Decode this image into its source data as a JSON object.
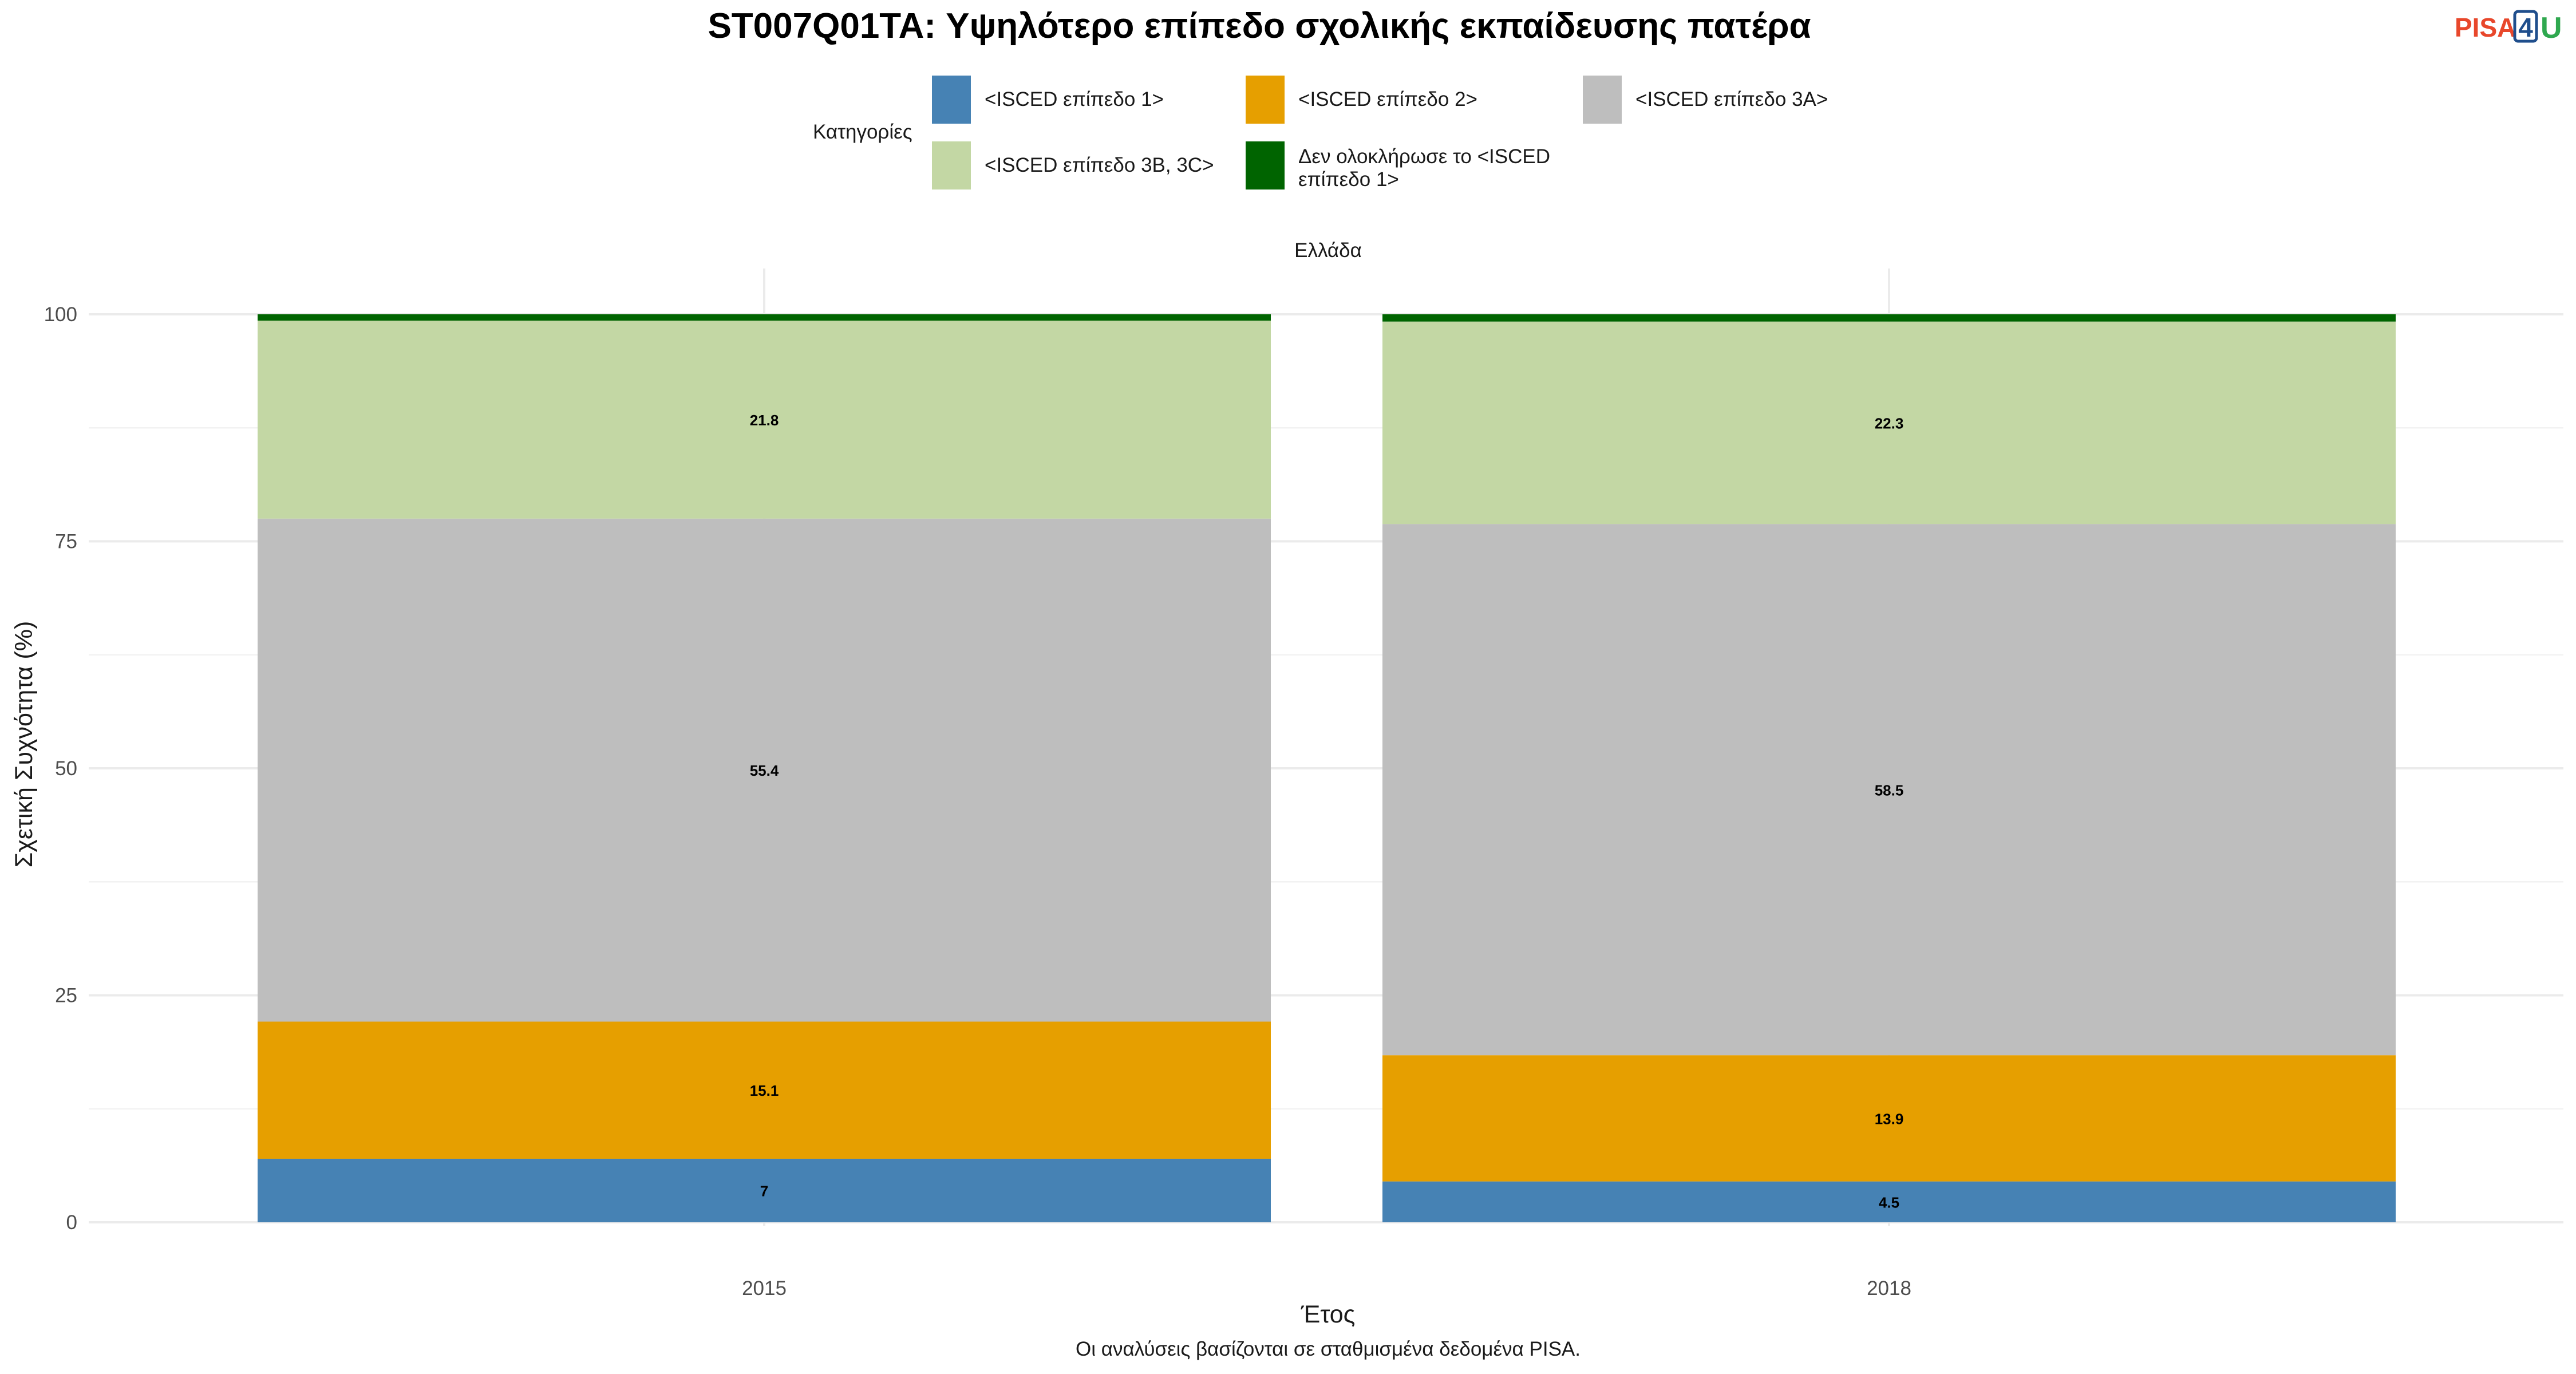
{
  "logo": {
    "text_a": "PISA",
    "text_b": "4",
    "text_c": "U",
    "color_a": "#e8472b",
    "color_b": "#1f4e8c",
    "color_c": "#2fa84f"
  },
  "chart_data": {
    "type": "bar",
    "stacked": true,
    "title": "ST007Q01TA: Υψηλότερο επίπεδο σχολικής εκπαίδευσης πατέρα",
    "facet_label": "Ελλάδα",
    "xlabel": "Έτος",
    "ylabel": "Σχετική Συχνότητα (%)",
    "caption": "Οι αναλύσεις βασίζονται σε σταθμισμένα δεδομένα PISA.",
    "legend_title": "Κατηγορίες",
    "legend_position": "top",
    "grid": true,
    "ylim": [
      0,
      100
    ],
    "yticks": [
      0,
      25,
      50,
      75,
      100
    ],
    "categories": [
      "2015",
      "2018"
    ],
    "series": [
      {
        "name": "<ISCED επίπεδο 1>",
        "color": "#4682b4",
        "values": [
          7,
          4.5
        ],
        "labels": [
          "7",
          "4.5"
        ]
      },
      {
        "name": "<ISCED επίπεδο 2>",
        "color": "#e69f00",
        "values": [
          15.1,
          13.9
        ],
        "labels": [
          "15.1",
          "13.9"
        ]
      },
      {
        "name": "<ISCED επίπεδο 3A>",
        "color": "#bebebe",
        "values": [
          55.4,
          58.5
        ],
        "labels": [
          "55.4",
          "58.5"
        ]
      },
      {
        "name": "<ISCED επίπεδο 3B, 3C>",
        "color": "#c3d7a4",
        "values": [
          21.8,
          22.3
        ],
        "labels": [
          "21.8",
          "22.3"
        ]
      },
      {
        "name": "Δεν ολοκλήρωσε το <ISCED επίπεδο 1>",
        "color": "#006400",
        "values": [
          0.7,
          0.8
        ],
        "labels": [
          "",
          ""
        ]
      }
    ]
  }
}
